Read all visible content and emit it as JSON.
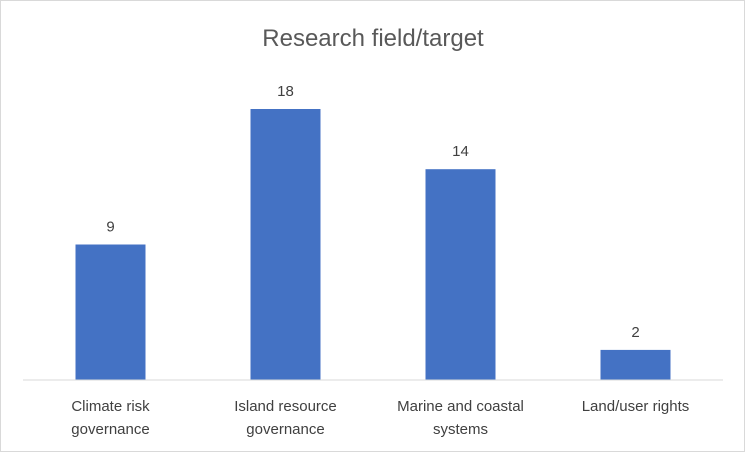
{
  "chart_data": {
    "type": "bar",
    "title": "Research field/target",
    "xlabel": "",
    "ylabel": "",
    "categories": [
      [
        "Climate risk",
        "governance"
      ],
      [
        "Island resource",
        "governance"
      ],
      [
        "Marine and coastal",
        "systems"
      ],
      [
        "Land/user rights"
      ]
    ],
    "values": [
      9,
      18,
      14,
      2
    ],
    "data_labels": [
      "9",
      "18",
      "14",
      "2"
    ],
    "ylim": [
      0,
      18
    ],
    "grid": false,
    "legend": "none",
    "colors": {
      "bar": "#4472C4",
      "axis": "#d9d9d9",
      "text": "#404040",
      "title": "#595959"
    }
  }
}
